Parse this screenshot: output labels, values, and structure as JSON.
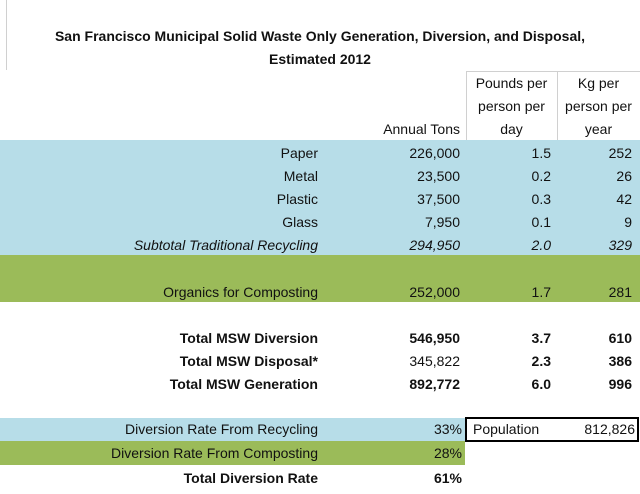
{
  "title": {
    "line1": "San Francisco Municipal Solid Waste Only Generation, Diversion, and Disposal,",
    "line2": "Estimated 2012"
  },
  "headers": {
    "tons": "Annual Tons",
    "lbs": [
      "Pounds per",
      "person per",
      "day"
    ],
    "kg": [
      "Kg per",
      "person per",
      "year"
    ]
  },
  "recycling": [
    {
      "label": "Paper",
      "tons": "226,000",
      "lbs": "1.5",
      "kg": "252"
    },
    {
      "label": "Metal",
      "tons": "23,500",
      "lbs": "0.2",
      "kg": "26"
    },
    {
      "label": "Plastic",
      "tons": "37,500",
      "lbs": "0.3",
      "kg": "42"
    },
    {
      "label": "Glass",
      "tons": "7,950",
      "lbs": "0.1",
      "kg": "9"
    },
    {
      "label": "Subtotal Traditional Recycling",
      "tons": "294,950",
      "lbs": "2.0",
      "kg": "329"
    }
  ],
  "organics": {
    "label": "Organics for Composting",
    "tons": "252,000",
    "lbs": "1.7",
    "kg": "281"
  },
  "totals": [
    {
      "label": "Total MSW Diversion",
      "tons": "546,950",
      "lbs": "3.7",
      "kg": "610"
    },
    {
      "label": "Total MSW Disposal*",
      "tons": "345,822",
      "lbs": "2.3",
      "kg": "386"
    },
    {
      "label": "Total MSW Generation",
      "tons": "892,772",
      "lbs": "6.0",
      "kg": "996"
    }
  ],
  "rates": [
    {
      "label": "Diversion Rate From Recycling",
      "value": "33%"
    },
    {
      "label": "Diversion Rate From Composting",
      "value": "28%"
    },
    {
      "label": "Total Diversion Rate",
      "value": "61%"
    }
  ],
  "population": {
    "label": "Population",
    "value": "812,826"
  },
  "colors": {
    "recycling": "#b7dde8",
    "composting": "#9bbb59"
  }
}
